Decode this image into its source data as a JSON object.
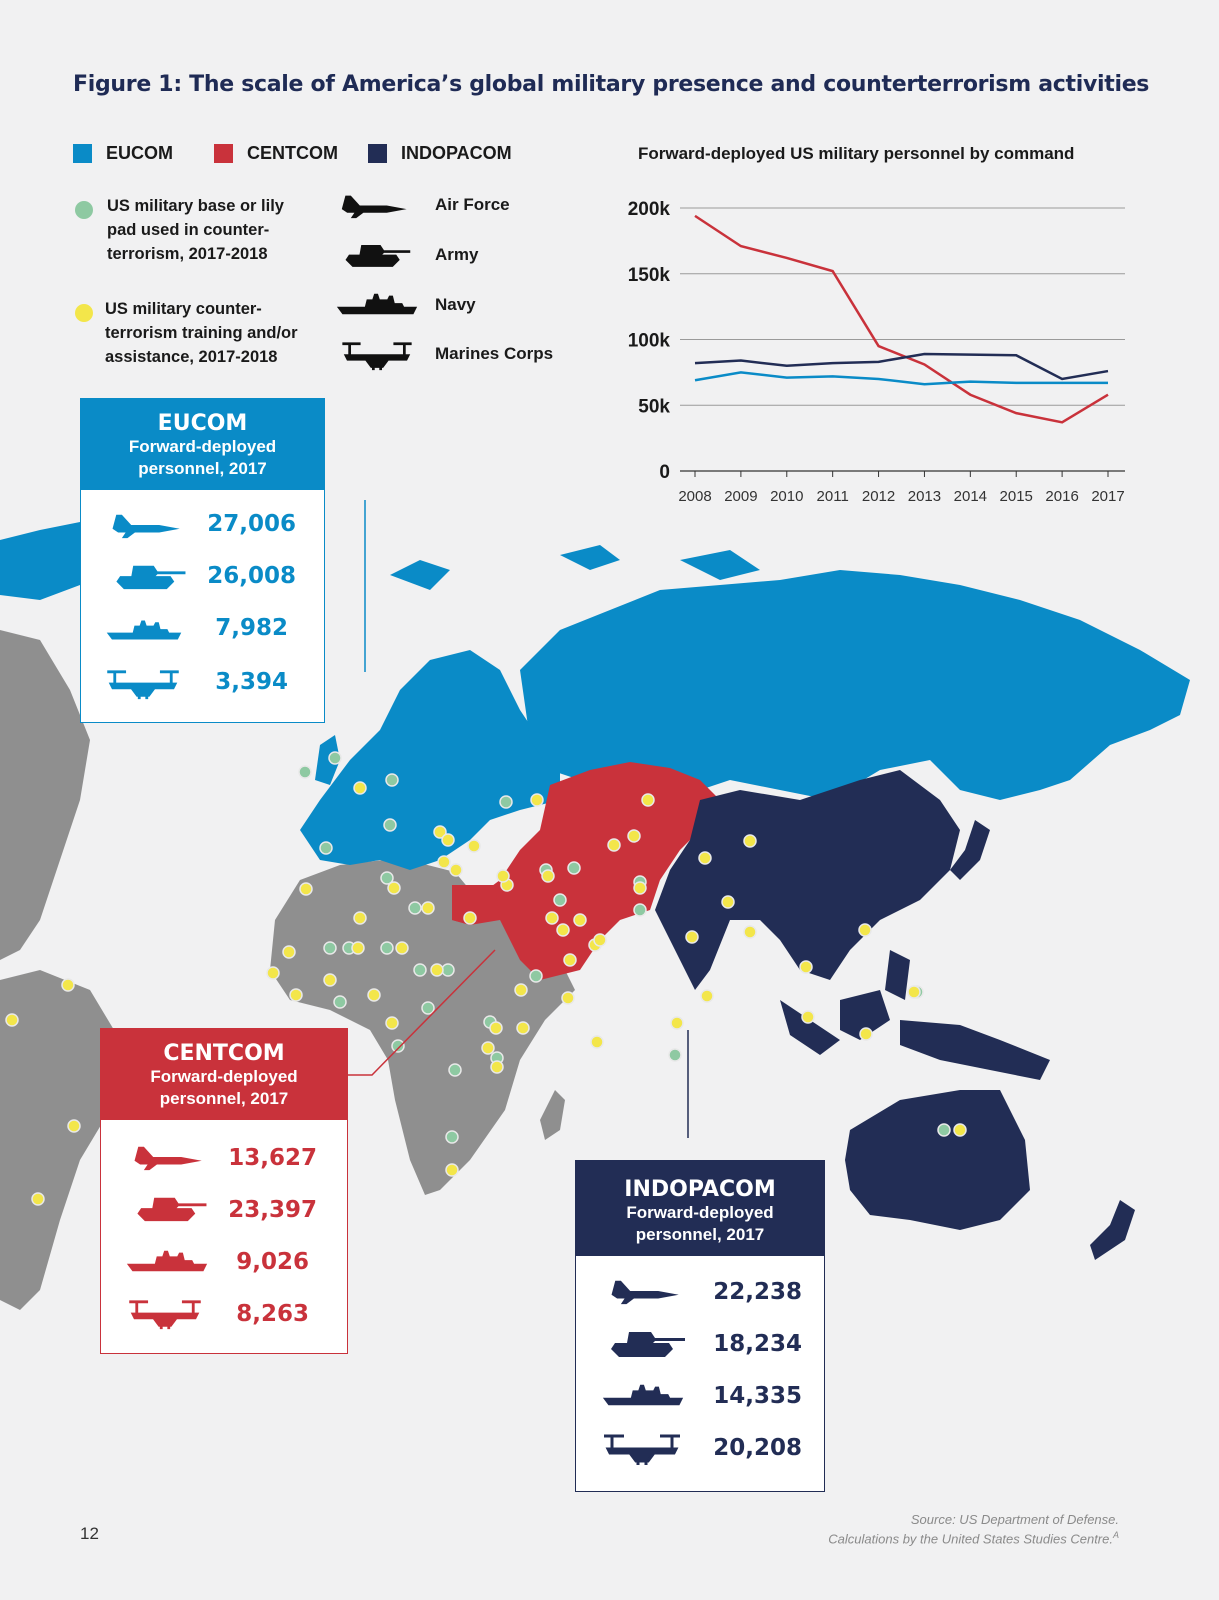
{
  "title": "Figure 1: The scale of America’s global military presence and counterterrorism activities",
  "colors": {
    "eucom": "#0a8bc7",
    "centcom": "#c9323b",
    "indopacom": "#222d55",
    "base_dot": "#8ec9a2",
    "training_dot": "#f3e64a",
    "other_land": "#8f8f8f"
  },
  "legend": {
    "commands": [
      {
        "label": "EUCOM",
        "color": "#0a8bc7"
      },
      {
        "label": "CENTCOM",
        "color": "#c9323b"
      },
      {
        "label": "INDOPACOM",
        "color": "#222d55"
      }
    ],
    "base_lines": [
      "US military base or lily",
      "pad used in counter-",
      "terrorism, 2017-2018"
    ],
    "training_lines": [
      "US military counter-",
      "terrorism training and/or",
      "assistance, 2017-2018"
    ],
    "branches": [
      {
        "label": "Air Force",
        "icon": "fighter-jet-icon"
      },
      {
        "label": "Army",
        "icon": "tank-icon"
      },
      {
        "label": "Navy",
        "icon": "warship-icon"
      },
      {
        "label": "Marines Corps",
        "icon": "osprey-icon"
      }
    ]
  },
  "chart_data": {
    "type": "line",
    "title": "Forward-deployed US military personnel by command",
    "x": [
      2008,
      2009,
      2010,
      2011,
      2012,
      2013,
      2014,
      2015,
      2016,
      2017
    ],
    "ylim": [
      0,
      200000
    ],
    "yticks": [
      "0",
      "50k",
      "100k",
      "150k",
      "200k"
    ],
    "xlabel": "",
    "ylabel": "",
    "grid": true,
    "series": [
      {
        "key": "centcom",
        "color": "#c9323b",
        "values": [
          194000,
          171000,
          162000,
          152000,
          95000,
          81000,
          58000,
          44000,
          37000,
          58000
        ]
      },
      {
        "key": "indopacom",
        "color": "#222d55",
        "values": [
          82000,
          84000,
          80000,
          82000,
          83000,
          89000,
          88500,
          88000,
          70000,
          76000
        ]
      },
      {
        "key": "eucom",
        "color": "#0a8bc7",
        "values": [
          69000,
          75000,
          71000,
          72000,
          70000,
          66000,
          68000,
          67000,
          67000,
          67000
        ]
      }
    ]
  },
  "boxes": {
    "eucom": {
      "title": "EUCOM",
      "subtitle_1": "Forward-deployed",
      "subtitle_2": "personnel, 2017",
      "values": [
        "27,006",
        "26,008",
        "7,982",
        "3,394"
      ]
    },
    "centcom": {
      "title": "CENTCOM",
      "subtitle_1": "Forward-deployed",
      "subtitle_2": "personnel, 2017",
      "values": [
        "13,627",
        "23,397",
        "9,026",
        "8,263"
      ]
    },
    "indopacom": {
      "title": "INDOPACOM",
      "subtitle_1": "Forward-deployed",
      "subtitle_2": "personnel, 2017",
      "values": [
        "22,238",
        "18,234",
        "14,335",
        "20,208"
      ]
    }
  },
  "page_number": "12",
  "source_line_1": "Source: US Department of Defense.",
  "source_line_2": "Calculations by the United States Studies Centre.",
  "source_footnote": "A"
}
